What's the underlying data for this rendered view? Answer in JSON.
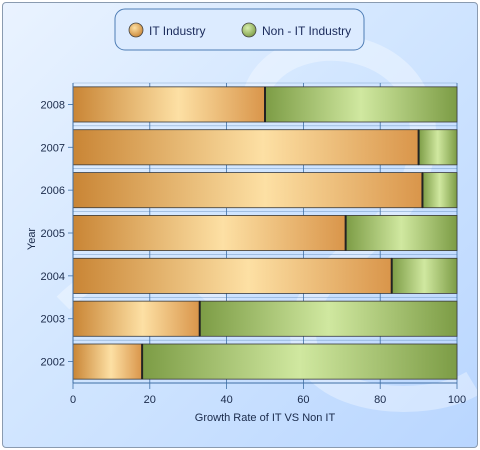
{
  "chart_data": {
    "type": "bar",
    "orientation": "horizontal",
    "stacked": "percent",
    "categories": [
      "2002",
      "2003",
      "2004",
      "2005",
      "2006",
      "2007",
      "2008"
    ],
    "series": [
      {
        "name": "IT Industry",
        "values": [
          18,
          33,
          83,
          71,
          91,
          90,
          50
        ],
        "color": "#e3a55c"
      },
      {
        "name": "Non - IT Industry",
        "values": [
          82,
          67,
          17,
          29,
          9,
          10,
          50
        ],
        "color": "#a8c66e"
      }
    ],
    "xlabel": "Growth Rate of IT VS Non IT",
    "ylabel": "Year",
    "xlim": [
      0,
      100
    ],
    "xticks": [
      "0",
      "20",
      "40",
      "60",
      "80",
      "100"
    ],
    "grid": true,
    "legend_position": "top-center"
  }
}
